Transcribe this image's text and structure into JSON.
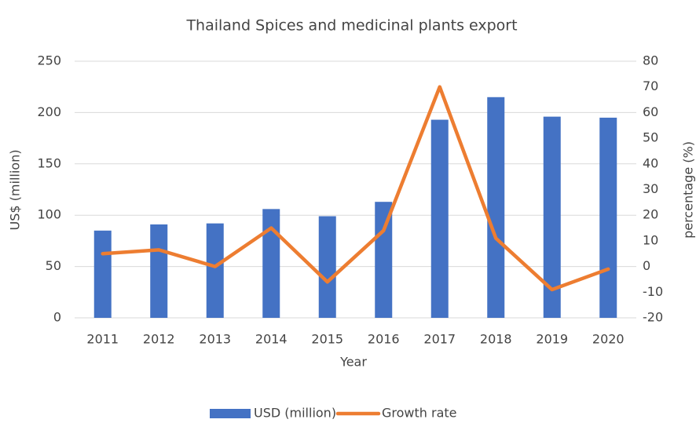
{
  "chart_data": {
    "type": "bar_line",
    "title": "Thailand Spices and medicinal plants export",
    "x_label": "Year",
    "y_label": "US$ (million)",
    "y2_label": "percentage (%)",
    "categories": [
      "2011",
      "2012",
      "2013",
      "2014",
      "2015",
      "2016",
      "2017",
      "2018",
      "2019",
      "2020"
    ],
    "series": [
      {
        "name": "USD (million)",
        "type": "bar",
        "color": "#4472c4",
        "values": [
          85,
          91,
          92,
          106,
          99,
          113,
          193,
          215,
          196,
          195
        ]
      },
      {
        "name": "Growth rate",
        "type": "line",
        "axis": "y2",
        "color": "#ed7d31",
        "values": [
          5,
          6.5,
          0,
          15,
          -6,
          14,
          70,
          11,
          -9,
          -1
        ]
      }
    ],
    "ylim": [
      0,
      250
    ],
    "yticks": [
      0,
      50,
      100,
      150,
      200,
      250
    ],
    "y2lim": [
      -20,
      80
    ],
    "y2ticks": [
      -20,
      -10,
      0,
      10,
      20,
      30,
      40,
      50,
      60,
      70,
      80
    ],
    "grid": true,
    "legend": "bottom"
  }
}
